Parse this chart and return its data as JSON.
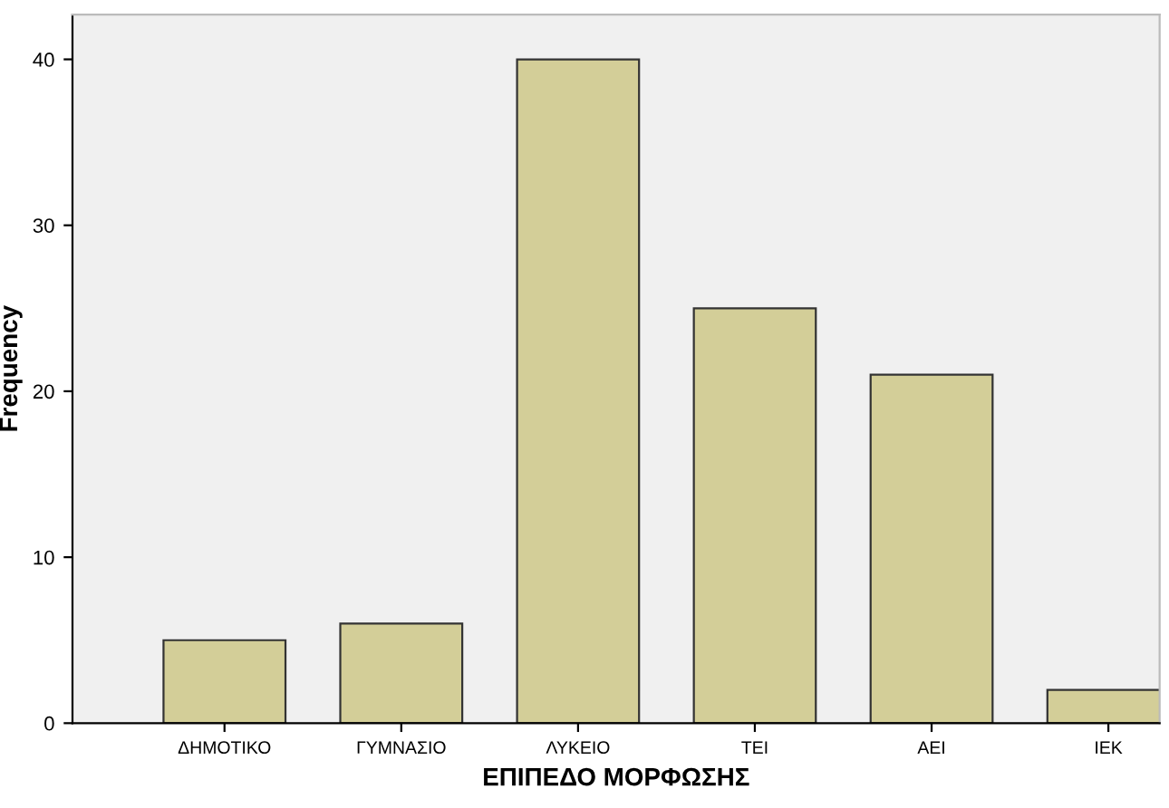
{
  "chart_data": {
    "type": "bar",
    "xlabel": "ΕΠΙΠΕΔΟ ΜΟΡΦΩΣΗΣ",
    "ylabel": "Frequency",
    "categories": [
      "ΔΗΜΟΤΙΚΟ",
      "ΓΥΜΝΑΣΙΟ",
      "ΛΥΚΕΙΟ",
      "ΤΕΙ",
      "ΑΕΙ",
      "ΙΕΚ"
    ],
    "values": [
      5,
      6,
      40,
      25,
      21,
      2
    ],
    "color": "#d3ce98",
    "ylim": [
      0,
      42.7
    ],
    "yticks": [
      0,
      10,
      20,
      30,
      40
    ],
    "grid": false
  }
}
